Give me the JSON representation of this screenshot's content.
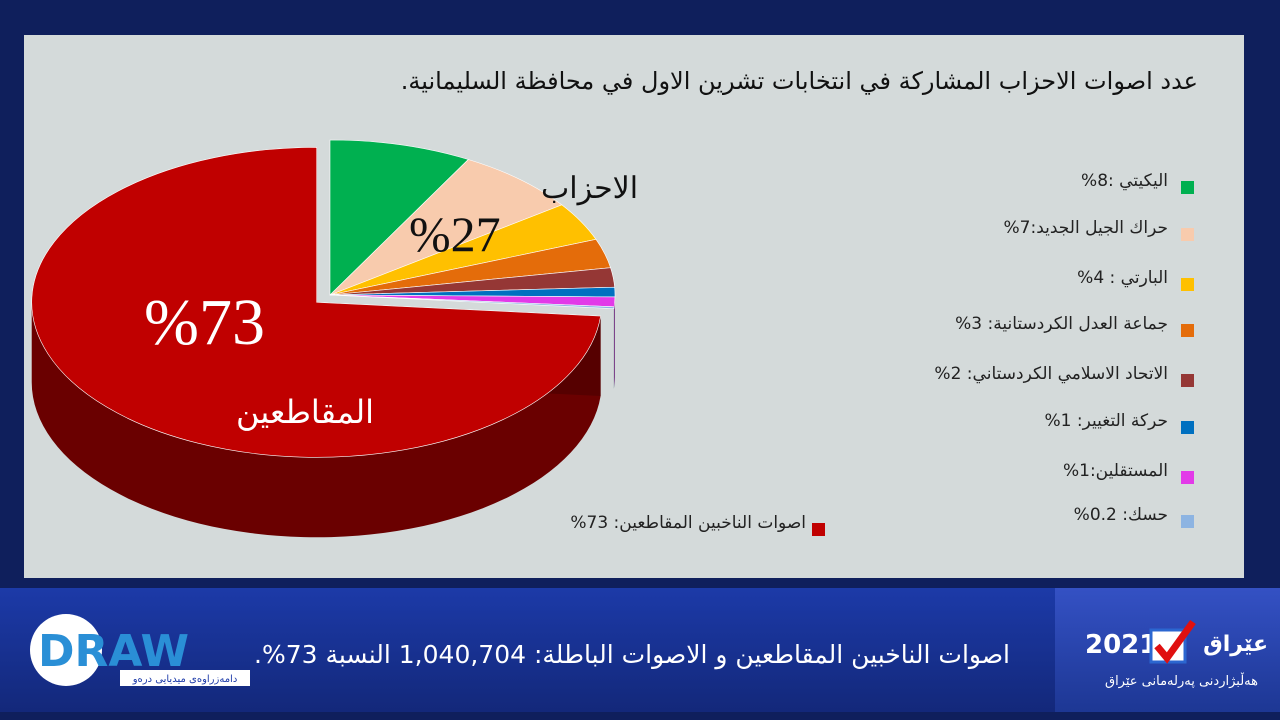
{
  "chart_data": {
    "type": "pie",
    "title": "عدد اصوات الاحزاب المشاركة في انتخابات تشرين الاول في محافظة السليمانية.",
    "categories": [
      "اليكيتي :8%",
      "حراك الجيل الجديد:7%",
      "البارتي : 4%",
      "جماعة العدل الكردستانية: 3%",
      "الاتحاد الاسلامي الكردستاني: 2%",
      "حركة التغيير: 1%",
      "المستقلين:1%",
      "حسك: 0.2%",
      "اصوات الناخبين المقاطعين: 73%"
    ],
    "values": [
      8,
      7,
      4,
      3,
      2,
      1,
      1,
      0.2,
      73
    ],
    "colors": [
      "#00b050",
      "#f8cbad",
      "#ffc000",
      "#e46c0a",
      "#953735",
      "#0070c0",
      "#e23ae8",
      "#8db4e2",
      "#c00000"
    ],
    "annotations": [
      "الاحزاب",
      "%27",
      "%73",
      "المقاطعين"
    ]
  },
  "ticker": {
    "text": "اصوات الناخبين المقاطعين و الاصوات الباطلة: 1,040,704 النسبة 73%."
  },
  "left_logo": {
    "name": "DRAW",
    "subtitle": "دامەزراوەی میدیایی درەو"
  },
  "right_logo": {
    "name": "عێراق",
    "year": "2021",
    "subtitle": "هەڵبژاردنی پەرلەمانی عێراق"
  }
}
